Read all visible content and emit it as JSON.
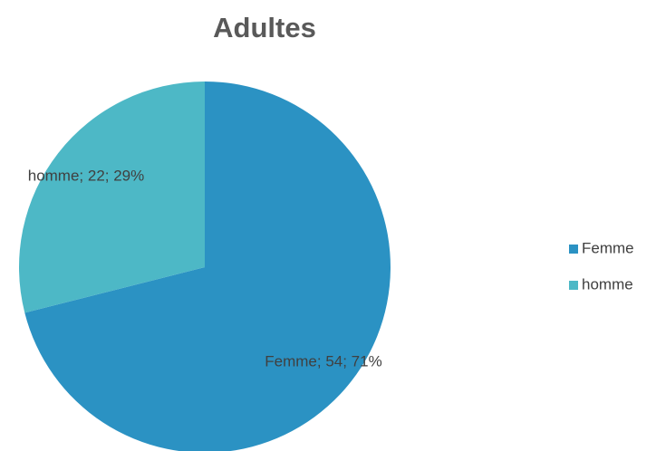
{
  "chart_data": {
    "type": "pie",
    "title": "Adultes",
    "categories": [
      "Femme",
      "homme"
    ],
    "values": [
      54,
      22
    ],
    "value_labels": [
      "Femme; 54; 71%",
      "homme; 22; 29%"
    ],
    "colors": [
      "#2b92c3",
      "#4db8c6"
    ],
    "legend": "right"
  }
}
